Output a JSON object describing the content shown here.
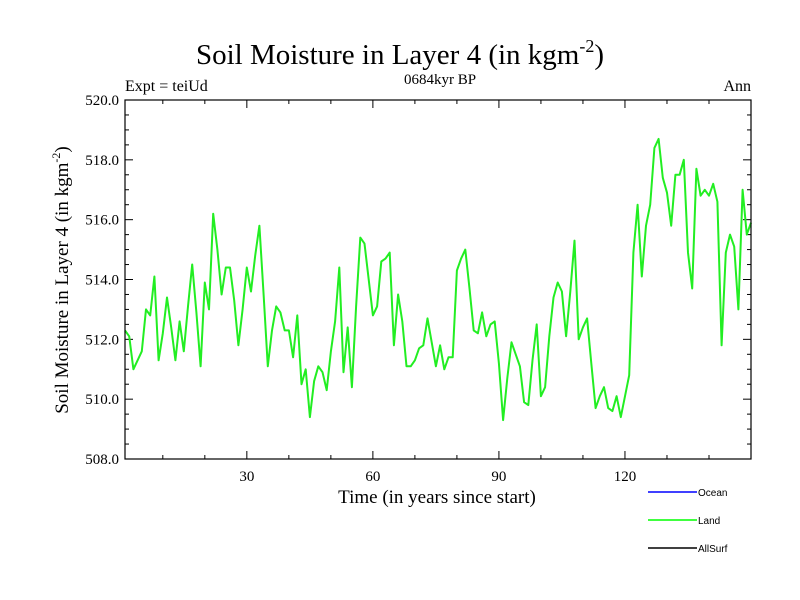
{
  "chart_data": {
    "type": "line",
    "title": "Soil Moisture in Layer 4 (in kgm",
    "title_sup": "-2",
    "title_close": ")",
    "subtitle": "0684kyr BP",
    "left_label": "Expt = teiUd",
    "right_label": "Ann",
    "xlabel": "Time (in years since start)",
    "ylabel": "Soil Moisture in Layer 4 (in kgm",
    "ylabel_sup": "-2",
    "ylabel_close": ")",
    "xlim": [
      1,
      150
    ],
    "ylim": [
      508.0,
      520.0
    ],
    "xticks": [
      30,
      60,
      90,
      120
    ],
    "xtick_labels": [
      "30",
      "60",
      "90",
      "120"
    ],
    "yticks": [
      508.0,
      510.0,
      512.0,
      514.0,
      516.0,
      518.0,
      520.0
    ],
    "ytick_labels": [
      "508.0",
      "510.0",
      "512.0",
      "514.0",
      "516.0",
      "518.0",
      "520.0"
    ],
    "legend": [
      {
        "name": "Ocean",
        "color": "#0000ff"
      },
      {
        "name": "Land",
        "color": "#00ff00"
      },
      {
        "name": "AllSurf",
        "color": "#000000"
      }
    ],
    "series": [
      {
        "name": "Land",
        "color": "#22ee22",
        "x": [
          1,
          2,
          3,
          4,
          5,
          6,
          7,
          8,
          9,
          10,
          11,
          12,
          13,
          14,
          15,
          16,
          17,
          18,
          19,
          20,
          21,
          22,
          23,
          24,
          25,
          26,
          27,
          28,
          29,
          30,
          31,
          32,
          33,
          34,
          35,
          36,
          37,
          38,
          39,
          40,
          41,
          42,
          43,
          44,
          45,
          46,
          47,
          48,
          49,
          50,
          51,
          52,
          53,
          54,
          55,
          56,
          57,
          58,
          59,
          60,
          61,
          62,
          63,
          64,
          65,
          66,
          67,
          68,
          69,
          70,
          71,
          72,
          73,
          74,
          75,
          76,
          77,
          78,
          79,
          80,
          81,
          82,
          83,
          84,
          85,
          86,
          87,
          88,
          89,
          90,
          91,
          92,
          93,
          94,
          95,
          96,
          97,
          98,
          99,
          100,
          101,
          102,
          103,
          104,
          105,
          106,
          107,
          108,
          109,
          110,
          111,
          112,
          113,
          114,
          115,
          116,
          117,
          118,
          119,
          120,
          121,
          122,
          123,
          124,
          125,
          126,
          127,
          128,
          129,
          130,
          131,
          132,
          133,
          134,
          135,
          136,
          137,
          138,
          139,
          140,
          141,
          142,
          143,
          144,
          145,
          146,
          147,
          148,
          149,
          150
        ],
        "values": [
          512.3,
          512.1,
          511.0,
          511.3,
          511.6,
          513.0,
          512.8,
          514.1,
          511.3,
          512.2,
          513.4,
          512.4,
          511.3,
          512.6,
          511.6,
          513.1,
          514.5,
          512.9,
          511.1,
          513.9,
          513.0,
          516.2,
          515.0,
          513.5,
          514.4,
          514.4,
          513.3,
          511.8,
          513.0,
          514.4,
          513.6,
          514.8,
          515.8,
          513.5,
          511.1,
          512.3,
          513.1,
          512.9,
          512.3,
          512.3,
          511.4,
          512.8,
          510.5,
          511.0,
          509.4,
          510.6,
          511.1,
          510.9,
          510.3,
          511.6,
          512.6,
          514.4,
          510.9,
          512.4,
          510.4,
          513.1,
          515.4,
          515.2,
          514.0,
          512.8,
          513.1,
          514.6,
          514.7,
          514.9,
          511.8,
          513.5,
          512.6,
          511.1,
          511.1,
          511.3,
          511.7,
          511.8,
          512.7,
          511.9,
          511.1,
          511.8,
          511.0,
          511.4,
          511.4,
          514.3,
          514.7,
          515.0,
          513.7,
          512.3,
          512.2,
          512.9,
          512.1,
          512.5,
          512.6,
          511.2,
          509.3,
          510.7,
          511.9,
          511.5,
          511.1,
          509.9,
          509.8,
          511.3,
          512.5,
          510.1,
          510.4,
          512.1,
          513.4,
          513.9,
          513.6,
          512.1,
          513.6,
          515.3,
          512.0,
          512.4,
          512.7,
          511.2,
          509.7,
          510.1,
          510.4,
          509.7,
          509.6,
          510.1,
          509.4,
          510.1,
          510.8,
          514.9,
          516.5,
          514.1,
          515.8,
          516.5,
          518.4,
          518.7,
          517.4,
          516.9,
          515.8,
          517.5,
          517.5,
          518.0,
          514.9,
          513.7,
          517.7,
          516.8,
          517.0,
          516.8,
          517.2,
          516.6,
          511.8,
          514.9,
          515.5,
          515.1,
          513.0,
          517.0,
          515.5,
          515.9
        ]
      }
    ]
  }
}
